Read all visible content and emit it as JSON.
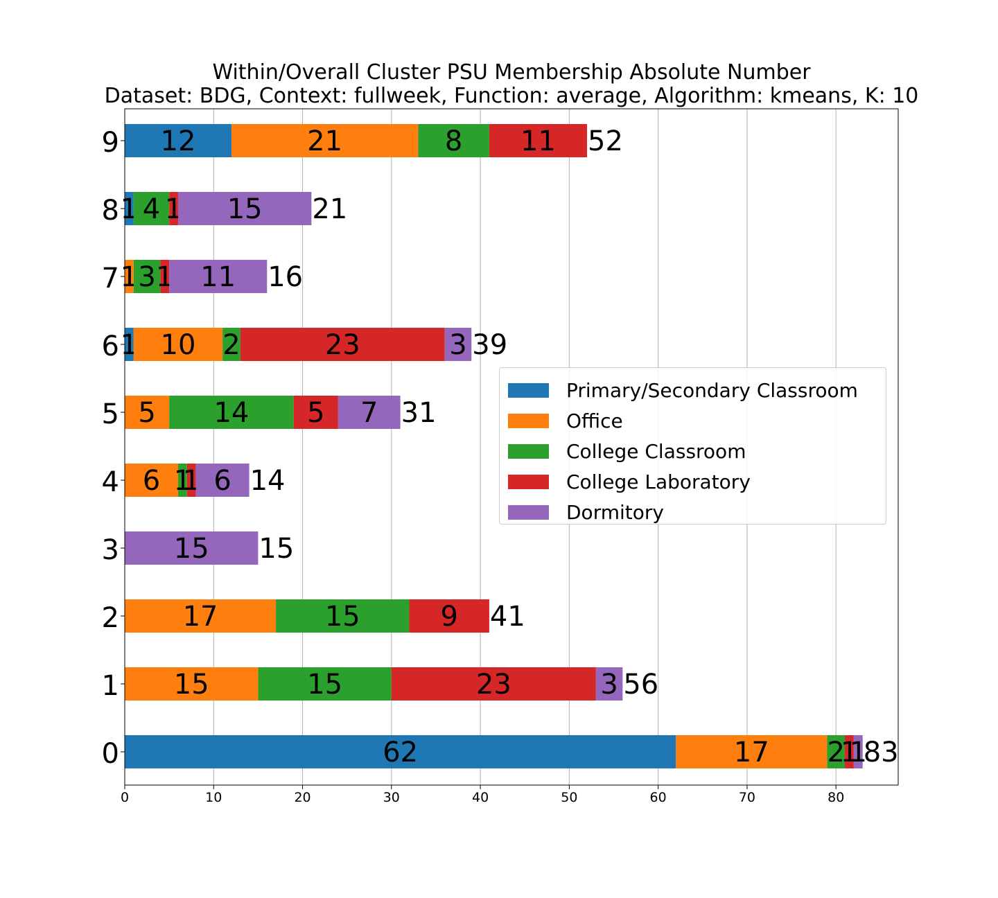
{
  "chart_data": {
    "type": "bar",
    "orientation": "horizontal",
    "stacked": true,
    "title": "Within/Overall Cluster PSU Membership Absolute Number",
    "subtitle": "Dataset: BDG, Context: fullweek, Function: average, Algorithm: kmeans, K: 10",
    "xlabel": "",
    "ylabel": "",
    "xlim": [
      0,
      87
    ],
    "xticks": [
      "0",
      "10",
      "20",
      "30",
      "40",
      "50",
      "60",
      "70",
      "80"
    ],
    "grid": "vertical",
    "legend_position": "center-right",
    "categories": [
      "0",
      "1",
      "2",
      "3",
      "4",
      "5",
      "6",
      "7",
      "8",
      "9"
    ],
    "series": [
      {
        "name": "Primary/Secondary Classroom",
        "color": "#1f77b4",
        "values": [
          62,
          0,
          0,
          0,
          0,
          0,
          1,
          0,
          1,
          12
        ]
      },
      {
        "name": "Office",
        "color": "#ff7f0e",
        "values": [
          17,
          15,
          17,
          0,
          6,
          5,
          10,
          1,
          0,
          21
        ]
      },
      {
        "name": "College Classroom",
        "color": "#2ca02c",
        "values": [
          2,
          15,
          15,
          0,
          1,
          14,
          2,
          3,
          4,
          8
        ]
      },
      {
        "name": "College Laboratory",
        "color": "#d62728",
        "values": [
          1,
          23,
          9,
          0,
          1,
          5,
          23,
          1,
          1,
          11
        ]
      },
      {
        "name": "Dormitory",
        "color": "#9467bd",
        "values": [
          1,
          3,
          0,
          15,
          6,
          7,
          3,
          11,
          15,
          0
        ]
      }
    ],
    "totals": [
      83,
      56,
      41,
      15,
      14,
      31,
      39,
      16,
      21,
      52
    ]
  }
}
